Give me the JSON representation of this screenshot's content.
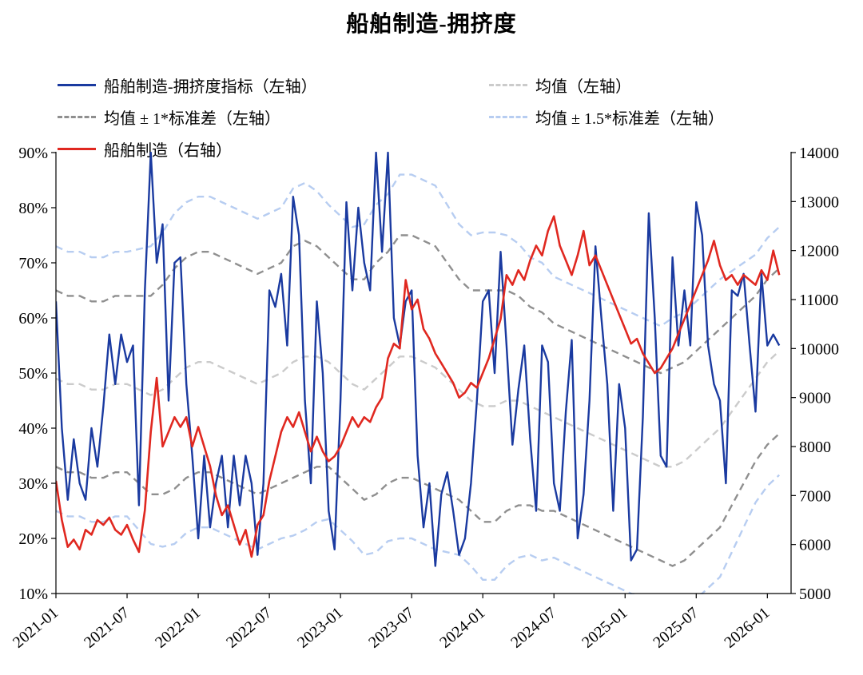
{
  "title": "船舶制造-拥挤度",
  "legend": [
    {
      "label": "船舶制造-拥挤度指标（左轴）",
      "color": "#1a3aa0",
      "style": "solid"
    },
    {
      "label": "均值（左轴）",
      "color": "#cbcbcb",
      "style": "dashed"
    },
    {
      "label": "均值 ± 1*标准差（左轴）",
      "color": "#8f8f8f",
      "style": "dashed"
    },
    {
      "label": "均值 ± 1.5*标准差（左轴）",
      "color": "#b7cdf1",
      "style": "dashed"
    },
    {
      "label": "船舶制造（右轴）",
      "color": "#e02820",
      "style": "solid"
    }
  ],
  "chart_data": {
    "type": "line",
    "title": "船舶制造-拥挤度",
    "x_unit": "months since 2021-01",
    "x_domain": [
      0,
      62
    ],
    "x_ticks": {
      "months": [
        0,
        6,
        12,
        18,
        24,
        30,
        36,
        42,
        48,
        54,
        60
      ],
      "labels": [
        "2021-01",
        "2021-07",
        "2022-01",
        "2022-07",
        "2023-01",
        "2023-07",
        "2024-01",
        "2024-07",
        "2025-01",
        "2025-07",
        "2026-01"
      ]
    },
    "left_axis": {
      "min": 10,
      "max": 90,
      "tick_labels": [
        "90%",
        "80%",
        "70%",
        "60%",
        "50%",
        "40%",
        "30%",
        "20%",
        "10%"
      ],
      "tick_values": [
        90,
        80,
        70,
        60,
        50,
        40,
        30,
        20,
        10
      ]
    },
    "right_axis": {
      "min": 5000,
      "max": 14000,
      "tick_labels": [
        "14000",
        "13000",
        "12000",
        "11000",
        "10000",
        "9000",
        "8000",
        "7000",
        "6000",
        "5000"
      ],
      "tick_values": [
        14000,
        13000,
        12000,
        11000,
        10000,
        9000,
        8000,
        7000,
        6000,
        5000
      ]
    },
    "grid": false,
    "legend_position": "top",
    "series": {
      "crowding": {
        "name": "船舶制造-拥挤度指标（左轴）",
        "axis": "left",
        "style": "solid",
        "color": "#1a3aa0",
        "width": 2.4,
        "x_step_months": 0.5,
        "values": [
          63,
          40,
          27,
          38,
          30,
          27,
          40,
          33,
          44,
          57,
          48,
          57,
          52,
          55,
          26,
          65,
          90,
          70,
          77,
          45,
          70,
          71,
          48,
          35,
          20,
          35,
          22,
          30,
          35,
          22,
          35,
          26,
          35,
          30,
          17,
          30,
          65,
          62,
          68,
          55,
          82,
          75,
          45,
          30,
          63,
          50,
          25,
          18,
          45,
          81,
          65,
          80,
          70,
          65,
          90,
          72,
          90,
          60,
          55,
          63,
          65,
          35,
          22,
          30,
          15,
          28,
          32,
          25,
          17,
          20,
          30,
          45,
          63,
          65,
          50,
          72,
          55,
          37,
          47,
          55,
          38,
          25,
          55,
          52,
          30,
          25,
          43,
          56,
          20,
          28,
          45,
          73,
          60,
          48,
          25,
          48,
          40,
          16,
          18,
          42,
          79,
          60,
          35,
          33,
          71,
          55,
          65,
          55,
          81,
          75,
          55,
          48,
          45,
          30,
          65,
          64,
          68,
          55,
          43,
          68,
          55,
          57,
          55
        ]
      },
      "ship_index": {
        "name": "船舶制造（右轴）",
        "axis": "right",
        "style": "solid",
        "color": "#e02820",
        "width": 2.6,
        "x_step_months": 0.5,
        "values": [
          7300,
          6500,
          5950,
          6100,
          5900,
          6300,
          6200,
          6500,
          6400,
          6550,
          6300,
          6200,
          6400,
          6100,
          5850,
          6700,
          8300,
          9400,
          8000,
          8300,
          8600,
          8400,
          8600,
          8000,
          8400,
          8000,
          7600,
          7000,
          6600,
          6800,
          6400,
          6000,
          6300,
          5750,
          6400,
          6600,
          7300,
          7800,
          8300,
          8600,
          8400,
          8700,
          8300,
          7900,
          8200,
          7900,
          7700,
          7800,
          8000,
          8300,
          8600,
          8400,
          8600,
          8500,
          8800,
          9000,
          9800,
          10100,
          10000,
          11400,
          10800,
          11000,
          10400,
          10200,
          9900,
          9700,
          9500,
          9300,
          9000,
          9100,
          9300,
          9200,
          9500,
          9800,
          10200,
          10600,
          11500,
          11300,
          11600,
          11400,
          11800,
          12100,
          11900,
          12400,
          12700,
          12100,
          11800,
          11500,
          11900,
          12400,
          11700,
          11900,
          11600,
          11300,
          11000,
          10700,
          10400,
          10100,
          10200,
          9900,
          9700,
          9500,
          9600,
          9800,
          10000,
          10300,
          10600,
          10900,
          11200,
          11500,
          11800,
          12200,
          11700,
          11400,
          11500,
          11300,
          11500,
          11400,
          11300,
          11600,
          11400,
          12000,
          11500
        ]
      },
      "mean": {
        "name": "均值（左轴）",
        "axis": "left",
        "style": "dashed",
        "color": "#cbcbcb",
        "width": 2.4,
        "x_step_months": 1,
        "values": [
          49,
          48,
          48,
          47,
          47,
          48,
          48,
          47,
          46,
          47,
          49,
          51,
          52,
          52,
          51,
          50,
          49,
          48,
          49,
          50,
          52,
          53,
          53,
          52,
          50,
          48,
          47,
          49,
          51,
          53,
          53,
          52,
          51,
          49,
          47,
          45,
          44,
          44,
          45,
          45,
          44,
          43,
          42,
          41,
          40,
          39,
          38,
          37,
          36,
          35,
          34,
          33,
          33,
          34,
          36,
          38,
          40,
          43,
          46,
          49,
          52,
          54
        ]
      },
      "std": {
        "name": "标准差",
        "axis": "left",
        "x_step_months": 1,
        "values": [
          16,
          16,
          16,
          16,
          16,
          16,
          16,
          17,
          18,
          19,
          20,
          20,
          20,
          20,
          20,
          20,
          20,
          20,
          20,
          20,
          21,
          21,
          20,
          19,
          19,
          19,
          20,
          21,
          21,
          22,
          22,
          22,
          22,
          21,
          20,
          20,
          21,
          21,
          20,
          19,
          18,
          18,
          17,
          17,
          17,
          17,
          17,
          17,
          17,
          17,
          17,
          17,
          18,
          18,
          18,
          18,
          18,
          17,
          16,
          15,
          15,
          15
        ],
        "bands": [
          {
            "k": 1,
            "name": "均值 ± 1*标准差（左轴）",
            "color": "#8f8f8f",
            "width": 2.4
          },
          {
            "k": 1.5,
            "name": "均值 ± 1.5*标准差（左轴）",
            "color": "#b7cdf1",
            "width": 2.4
          }
        ]
      }
    }
  }
}
